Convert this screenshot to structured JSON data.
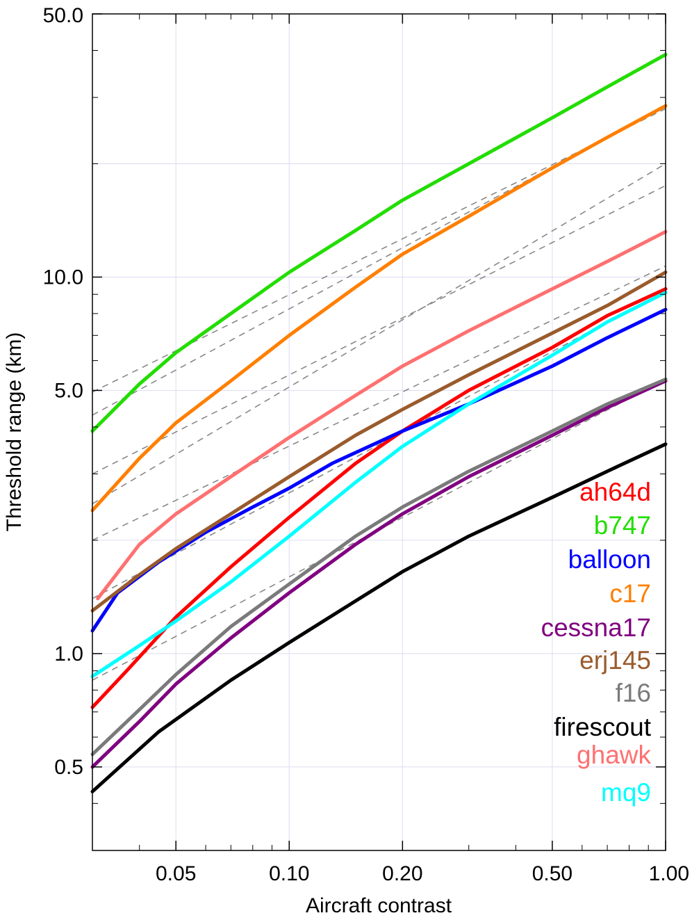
{
  "chart_data": {
    "type": "line",
    "xlabel": "Aircraft contrast",
    "ylabel": "Threshold range (km)",
    "x_scale": "log",
    "y_scale": "log",
    "xlim": [
      0.03,
      1.0
    ],
    "ylim": [
      0.3,
      50.0
    ],
    "x_ticks": [
      {
        "value": 0.05,
        "label": "0.05"
      },
      {
        "value": 0.1,
        "label": "0.10"
      },
      {
        "value": 0.2,
        "label": "0.20"
      },
      {
        "value": 0.5,
        "label": "0.50"
      },
      {
        "value": 1.0,
        "label": "1.00"
      }
    ],
    "y_ticks": [
      {
        "value": 0.5,
        "label": "0.5"
      },
      {
        "value": 1.0,
        "label": "1.0"
      },
      {
        "value": 5.0,
        "label": "5.0"
      },
      {
        "value": 10.0,
        "label": "10.0"
      },
      {
        "value": 50.0,
        "label": "50.0"
      }
    ],
    "grid": true,
    "legend_position": "right",
    "series": [
      {
        "name": "ah64d",
        "color": "#ff0000",
        "x": [
          0.03,
          0.037,
          0.05,
          0.07,
          0.1,
          0.15,
          0.2,
          0.3,
          0.5,
          0.7,
          1.0
        ],
        "y": [
          0.72,
          0.9,
          1.25,
          1.7,
          2.3,
          3.2,
          3.9,
          5.0,
          6.5,
          7.9,
          9.3
        ]
      },
      {
        "name": "b747",
        "color": "#22dd00",
        "x": [
          0.03,
          0.04,
          0.05,
          0.07,
          0.1,
          0.15,
          0.2,
          0.3,
          0.5,
          0.7,
          1.0
        ],
        "y": [
          3.9,
          5.2,
          6.3,
          8.0,
          10.3,
          13.3,
          16.0,
          20.0,
          26.5,
          32.0,
          39.0
        ]
      },
      {
        "name": "balloon",
        "color": "#0000ff",
        "x": [
          0.03,
          0.035,
          0.045,
          0.06,
          0.08,
          0.1,
          0.13,
          0.2,
          0.3,
          0.5,
          0.7,
          1.0
        ],
        "y": [
          1.15,
          1.45,
          1.75,
          2.1,
          2.45,
          2.75,
          3.2,
          3.9,
          4.6,
          5.8,
          6.9,
          8.2
        ]
      },
      {
        "name": "c17",
        "color": "#ff7f00",
        "x": [
          0.03,
          0.04,
          0.05,
          0.07,
          0.1,
          0.15,
          0.2,
          0.3,
          0.5,
          0.7,
          1.0
        ],
        "y": [
          2.4,
          3.3,
          4.1,
          5.3,
          7.0,
          9.4,
          11.5,
          14.5,
          19.5,
          23.5,
          28.5
        ]
      },
      {
        "name": "cessna17",
        "color": "#800080",
        "x": [
          0.03,
          0.04,
          0.05,
          0.07,
          0.1,
          0.15,
          0.2,
          0.3,
          0.5,
          0.7,
          1.0
        ],
        "y": [
          0.5,
          0.66,
          0.83,
          1.1,
          1.45,
          1.95,
          2.35,
          2.95,
          3.8,
          4.5,
          5.3
        ]
      },
      {
        "name": "erj145",
        "color": "#9a5b2c",
        "x": [
          0.03,
          0.04,
          0.05,
          0.07,
          0.1,
          0.15,
          0.2,
          0.3,
          0.5,
          0.7,
          1.0
        ],
        "y": [
          1.3,
          1.62,
          1.9,
          2.35,
          2.95,
          3.8,
          4.45,
          5.5,
          7.1,
          8.4,
          10.3
        ]
      },
      {
        "name": "f16",
        "color": "#7a7a7a",
        "x": [
          0.03,
          0.04,
          0.05,
          0.07,
          0.1,
          0.15,
          0.2,
          0.3,
          0.5,
          0.7,
          1.0
        ],
        "y": [
          0.54,
          0.71,
          0.88,
          1.18,
          1.53,
          2.05,
          2.45,
          3.05,
          3.9,
          4.6,
          5.35
        ]
      },
      {
        "name": "firescout",
        "color": "#000000",
        "x": [
          0.03,
          0.045,
          0.07,
          0.1,
          0.15,
          0.2,
          0.3,
          0.5,
          0.7,
          1.0
        ],
        "y": [
          0.43,
          0.62,
          0.85,
          1.07,
          1.38,
          1.65,
          2.05,
          2.6,
          3.05,
          3.6
        ]
      },
      {
        "name": "ghawk",
        "color": "#ff7070",
        "x": [
          0.031,
          0.04,
          0.05,
          0.07,
          0.1,
          0.15,
          0.2,
          0.3,
          0.5,
          0.7,
          1.0
        ],
        "y": [
          1.4,
          1.95,
          2.35,
          2.95,
          3.75,
          4.85,
          5.8,
          7.2,
          9.3,
          11.0,
          13.2
        ]
      },
      {
        "name": "mq9",
        "color": "#00ffff",
        "x": [
          0.03,
          0.04,
          0.05,
          0.07,
          0.1,
          0.15,
          0.2,
          0.3,
          0.5,
          0.7,
          1.0
        ],
        "y": [
          0.87,
          1.05,
          1.22,
          1.55,
          2.05,
          2.85,
          3.55,
          4.6,
          6.2,
          7.6,
          9.1
        ]
      }
    ],
    "reference_lines": [
      {
        "style": "dashed",
        "color": "#888888",
        "x": [
          0.03,
          1.0
        ],
        "y": [
          4.3,
          28.5
        ]
      },
      {
        "style": "dashed",
        "color": "#888888",
        "x": [
          0.03,
          1.0
        ],
        "y": [
          2.5,
          20.0
        ]
      },
      {
        "style": "dashed",
        "color": "#888888",
        "x": [
          0.03,
          1.0
        ],
        "y": [
          3.0,
          17.5
        ]
      },
      {
        "style": "dashed",
        "color": "#888888",
        "x": [
          0.03,
          1.0
        ],
        "y": [
          4.95,
          28.0
        ]
      },
      {
        "style": "dashed",
        "color": "#888888",
        "x": [
          0.03,
          1.0
        ],
        "y": [
          2.0,
          10.7
        ]
      },
      {
        "style": "dashed",
        "color": "#888888",
        "x": [
          0.03,
          1.0
        ],
        "y": [
          1.4,
          9.2
        ]
      },
      {
        "style": "dashed",
        "color": "#888888",
        "x": [
          0.03,
          1.0
        ],
        "y": [
          0.85,
          5.35
        ]
      }
    ]
  }
}
